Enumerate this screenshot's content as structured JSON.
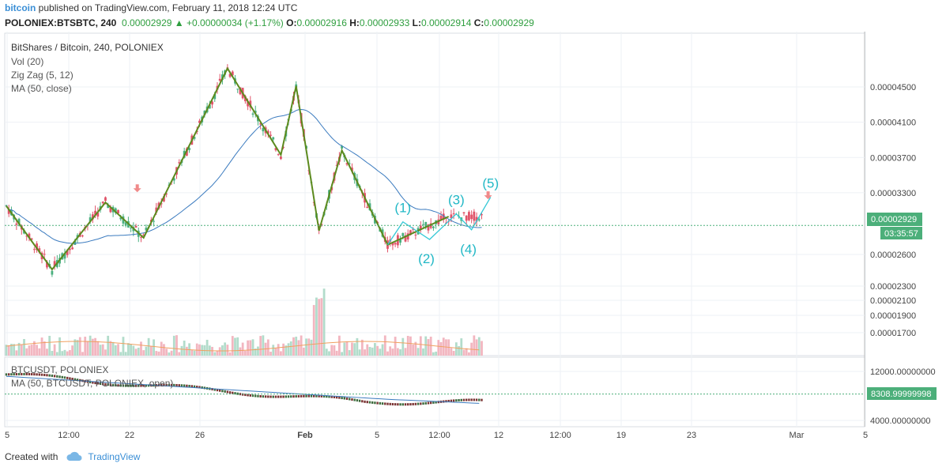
{
  "header": {
    "author": "bitcoin",
    "published_text": "published on TradingView.com, February 11, 2018 12:24 UTC",
    "symbol": "POLONIEX:BTSBTC, 240",
    "price": "0.00002929",
    "change": "+0.00000034 (+1.17%)",
    "o_label": "O:",
    "o_value": "0.00002916",
    "h_label": "H:",
    "h_value": "0.00002933",
    "l_label": "L:",
    "l_value": "0.00002914",
    "c_label": "C:",
    "c_value": "0.00002929"
  },
  "legend": {
    "title": "BitShares / Bitcoin, 240, POLONIEX",
    "vol": "Vol (20)",
    "zigzag": "Zig Zag (5, 12)",
    "ma": "MA (50, close)"
  },
  "sub_legend": {
    "symbol": "BTCUSDT, POLONIEX",
    "ma": "MA (50, BTCUSDT, POLONIEX, open)"
  },
  "price_badge": "0.00002929",
  "countdown_badge": "03:35:57",
  "sub_badge": "8308.99999998",
  "footer": {
    "created_with": "Created with",
    "brand": "TradingView"
  },
  "colors": {
    "up": "#4aaf7f",
    "down": "#e0546a",
    "zigzag": "#5c8a1e",
    "ma": "#3b7bbf",
    "wave": "#35c8d6",
    "arrow": "#f08a8a",
    "badge": "#4caf7a",
    "vol_up": "#b2dccb",
    "vol_down": "#f2b6c0",
    "vol_ma": "#f0a060"
  },
  "chart_data": {
    "type": "candlestick",
    "price_axis": {
      "ticks": [
        "0.00004500",
        "0.00004100",
        "0.00003700",
        "0.00003300",
        "0.00002600",
        "0.00002300",
        "0.00002100",
        "0.00001900",
        "0.00001700"
      ],
      "tick_values": [
        4.5e-05,
        4.1e-05,
        3.7e-05,
        3.3e-05,
        2.6e-05,
        2.3e-05,
        2.1e-05,
        1.9e-05,
        1.7e-05
      ]
    },
    "sub_axis": {
      "ticks": [
        "12000.00000000",
        "4000.00000000"
      ],
      "tick_values": [
        12000,
        4000
      ]
    },
    "time_axis": [
      "5",
      "12:00",
      "22",
      "26",
      "Feb",
      "5",
      "12:00",
      "12",
      "12:00",
      "19",
      "23",
      "Mar",
      "5"
    ],
    "zigzag_points": [
      [
        0,
        3.15e-05
      ],
      [
        6,
        2.43e-05
      ],
      [
        13,
        3.19e-05
      ],
      [
        18,
        2.79e-05
      ],
      [
        29,
        4.71e-05
      ],
      [
        36,
        3.73e-05
      ],
      [
        38,
        4.51e-05
      ],
      [
        41,
        2.87e-05
      ],
      [
        44,
        3.78e-05
      ],
      [
        50,
        2.71e-05
      ],
      [
        58,
        3.03e-05
      ]
    ],
    "wave_labels": [
      {
        "label": "(1)",
        "t": 52,
        "v": 2.97e-05
      },
      {
        "label": "(2)",
        "t": 55.5,
        "v": 2.77e-05
      },
      {
        "label": "(3)",
        "t": 59,
        "v": 3.06e-05
      },
      {
        "label": "(4)",
        "t": 61,
        "v": 2.88e-05
      },
      {
        "label": "(5)",
        "t": 63.5,
        "v": 3.25e-05
      }
    ],
    "current_price": 2.929e-05,
    "sub_current": 8308.99999998
  }
}
